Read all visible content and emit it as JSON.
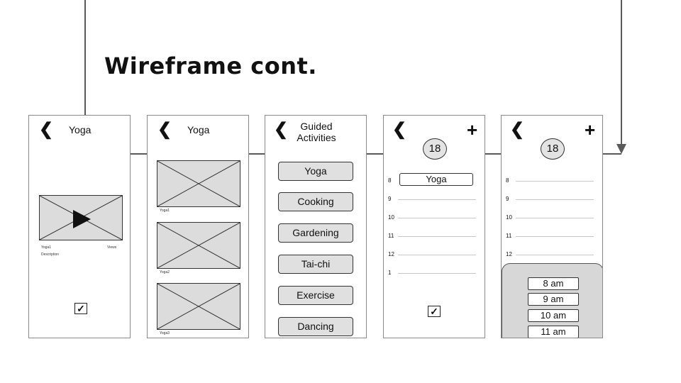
{
  "title": "Wireframe cont.",
  "colors": {
    "line": "#5a5a5a",
    "placeholder": "#dcdcdc",
    "button": "#e0e0e0"
  },
  "screen1": {
    "back_icon": "chevron-left",
    "header": "Yoga",
    "video_label": "Yoga1",
    "views_label": "Views",
    "description_label": "Description",
    "checkbox_checked": true
  },
  "screen2": {
    "back_icon": "chevron-left",
    "header": "Yoga",
    "videos": [
      {
        "label": "Yoga1"
      },
      {
        "label": "Yoga2"
      },
      {
        "label": "Yoga3"
      }
    ]
  },
  "screen3": {
    "back_icon": "chevron-left",
    "header_line1": "Guided",
    "header_line2": "Activities",
    "activities": [
      "Yoga",
      "Cooking",
      "Gardening",
      "Tai-chi",
      "Exercise",
      "Dancing"
    ]
  },
  "screen4": {
    "back_icon": "chevron-left",
    "add_icon": "plus",
    "date": "18",
    "hours": [
      "8",
      "9",
      "10",
      "11",
      "12",
      "1"
    ],
    "event": "Yoga",
    "checkbox_checked": true
  },
  "screen5": {
    "back_icon": "chevron-left",
    "add_icon": "plus",
    "date": "18",
    "hours": [
      "8",
      "9",
      "10",
      "11",
      "12"
    ],
    "times": [
      "8 am",
      "9 am",
      "10 am",
      "11 am"
    ]
  }
}
